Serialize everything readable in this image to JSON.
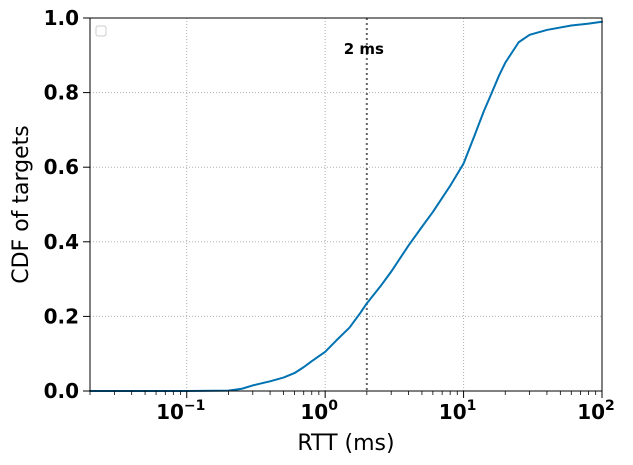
{
  "chart_data": {
    "type": "line",
    "xscale": "log",
    "xlabel": "RTT (ms)",
    "ylabel": "CDF of targets",
    "xlim": [
      0.02,
      100
    ],
    "ylim": [
      0,
      1
    ],
    "grid": true,
    "legend": "top-left (empty)",
    "x_ticks": [
      {
        "value": 0.1,
        "base": "10",
        "exp": "−1"
      },
      {
        "value": 1,
        "base": "10",
        "exp": "0"
      },
      {
        "value": 10,
        "base": "10",
        "exp": "1"
      },
      {
        "value": 100,
        "base": "10",
        "exp": "2"
      }
    ],
    "y_ticks": [
      {
        "value": 0.0,
        "label": "0.0"
      },
      {
        "value": 0.2,
        "label": "0.2"
      },
      {
        "value": 0.4,
        "label": "0.4"
      },
      {
        "value": 0.6,
        "label": "0.6"
      },
      {
        "value": 0.8,
        "label": "0.8"
      },
      {
        "value": 1.0,
        "label": "1.0"
      }
    ],
    "series": [
      {
        "color": "#0072b2",
        "x": [
          0.02,
          0.1,
          0.2,
          0.25,
          0.3,
          0.35,
          0.4,
          0.5,
          0.6,
          0.7,
          0.8,
          1.0,
          1.2,
          1.5,
          1.8,
          2.0,
          2.5,
          3.0,
          4.0,
          5.0,
          6.0,
          8.0,
          10.0,
          12.0,
          14.0,
          16.0,
          18.0,
          20.0,
          25.0,
          30.0,
          40.0,
          60.0,
          80.0,
          100.0
        ],
        "y": [
          0.0,
          0.0,
          0.001,
          0.006,
          0.015,
          0.021,
          0.026,
          0.036,
          0.048,
          0.064,
          0.08,
          0.105,
          0.135,
          0.17,
          0.21,
          0.235,
          0.28,
          0.32,
          0.39,
          0.44,
          0.48,
          0.55,
          0.61,
          0.685,
          0.75,
          0.8,
          0.845,
          0.88,
          0.935,
          0.955,
          0.968,
          0.98,
          0.985,
          0.99
        ]
      }
    ],
    "vlines": [
      {
        "x": 2,
        "color": "#666666",
        "label": "2 ms"
      }
    ]
  }
}
